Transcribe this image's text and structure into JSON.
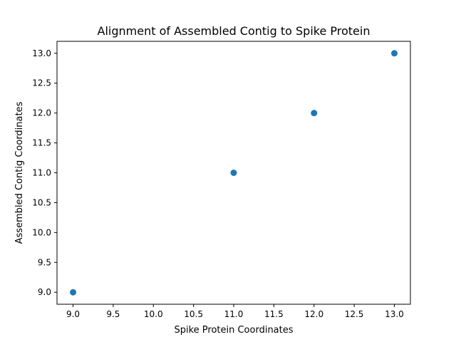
{
  "chart_data": {
    "type": "scatter",
    "title": "Alignment of Assembled Contig to Spike Protein",
    "xlabel": "Spike Protein Coordinates",
    "ylabel": "Assembled Contig Coordinates",
    "xlim": [
      8.8,
      13.2
    ],
    "ylim": [
      8.8,
      13.2
    ],
    "xticks": [
      "9.0",
      "9.5",
      "10.0",
      "10.5",
      "11.0",
      "11.5",
      "12.0",
      "12.5",
      "13.0"
    ],
    "yticks": [
      "9.0",
      "9.5",
      "10.0",
      "10.5",
      "11.0",
      "11.5",
      "12.0",
      "12.5",
      "13.0"
    ],
    "grid": false,
    "point_color": "#1f77b4",
    "points": [
      {
        "x": 9,
        "y": 9
      },
      {
        "x": 11,
        "y": 11
      },
      {
        "x": 12,
        "y": 12
      },
      {
        "x": 13,
        "y": 13
      }
    ]
  }
}
